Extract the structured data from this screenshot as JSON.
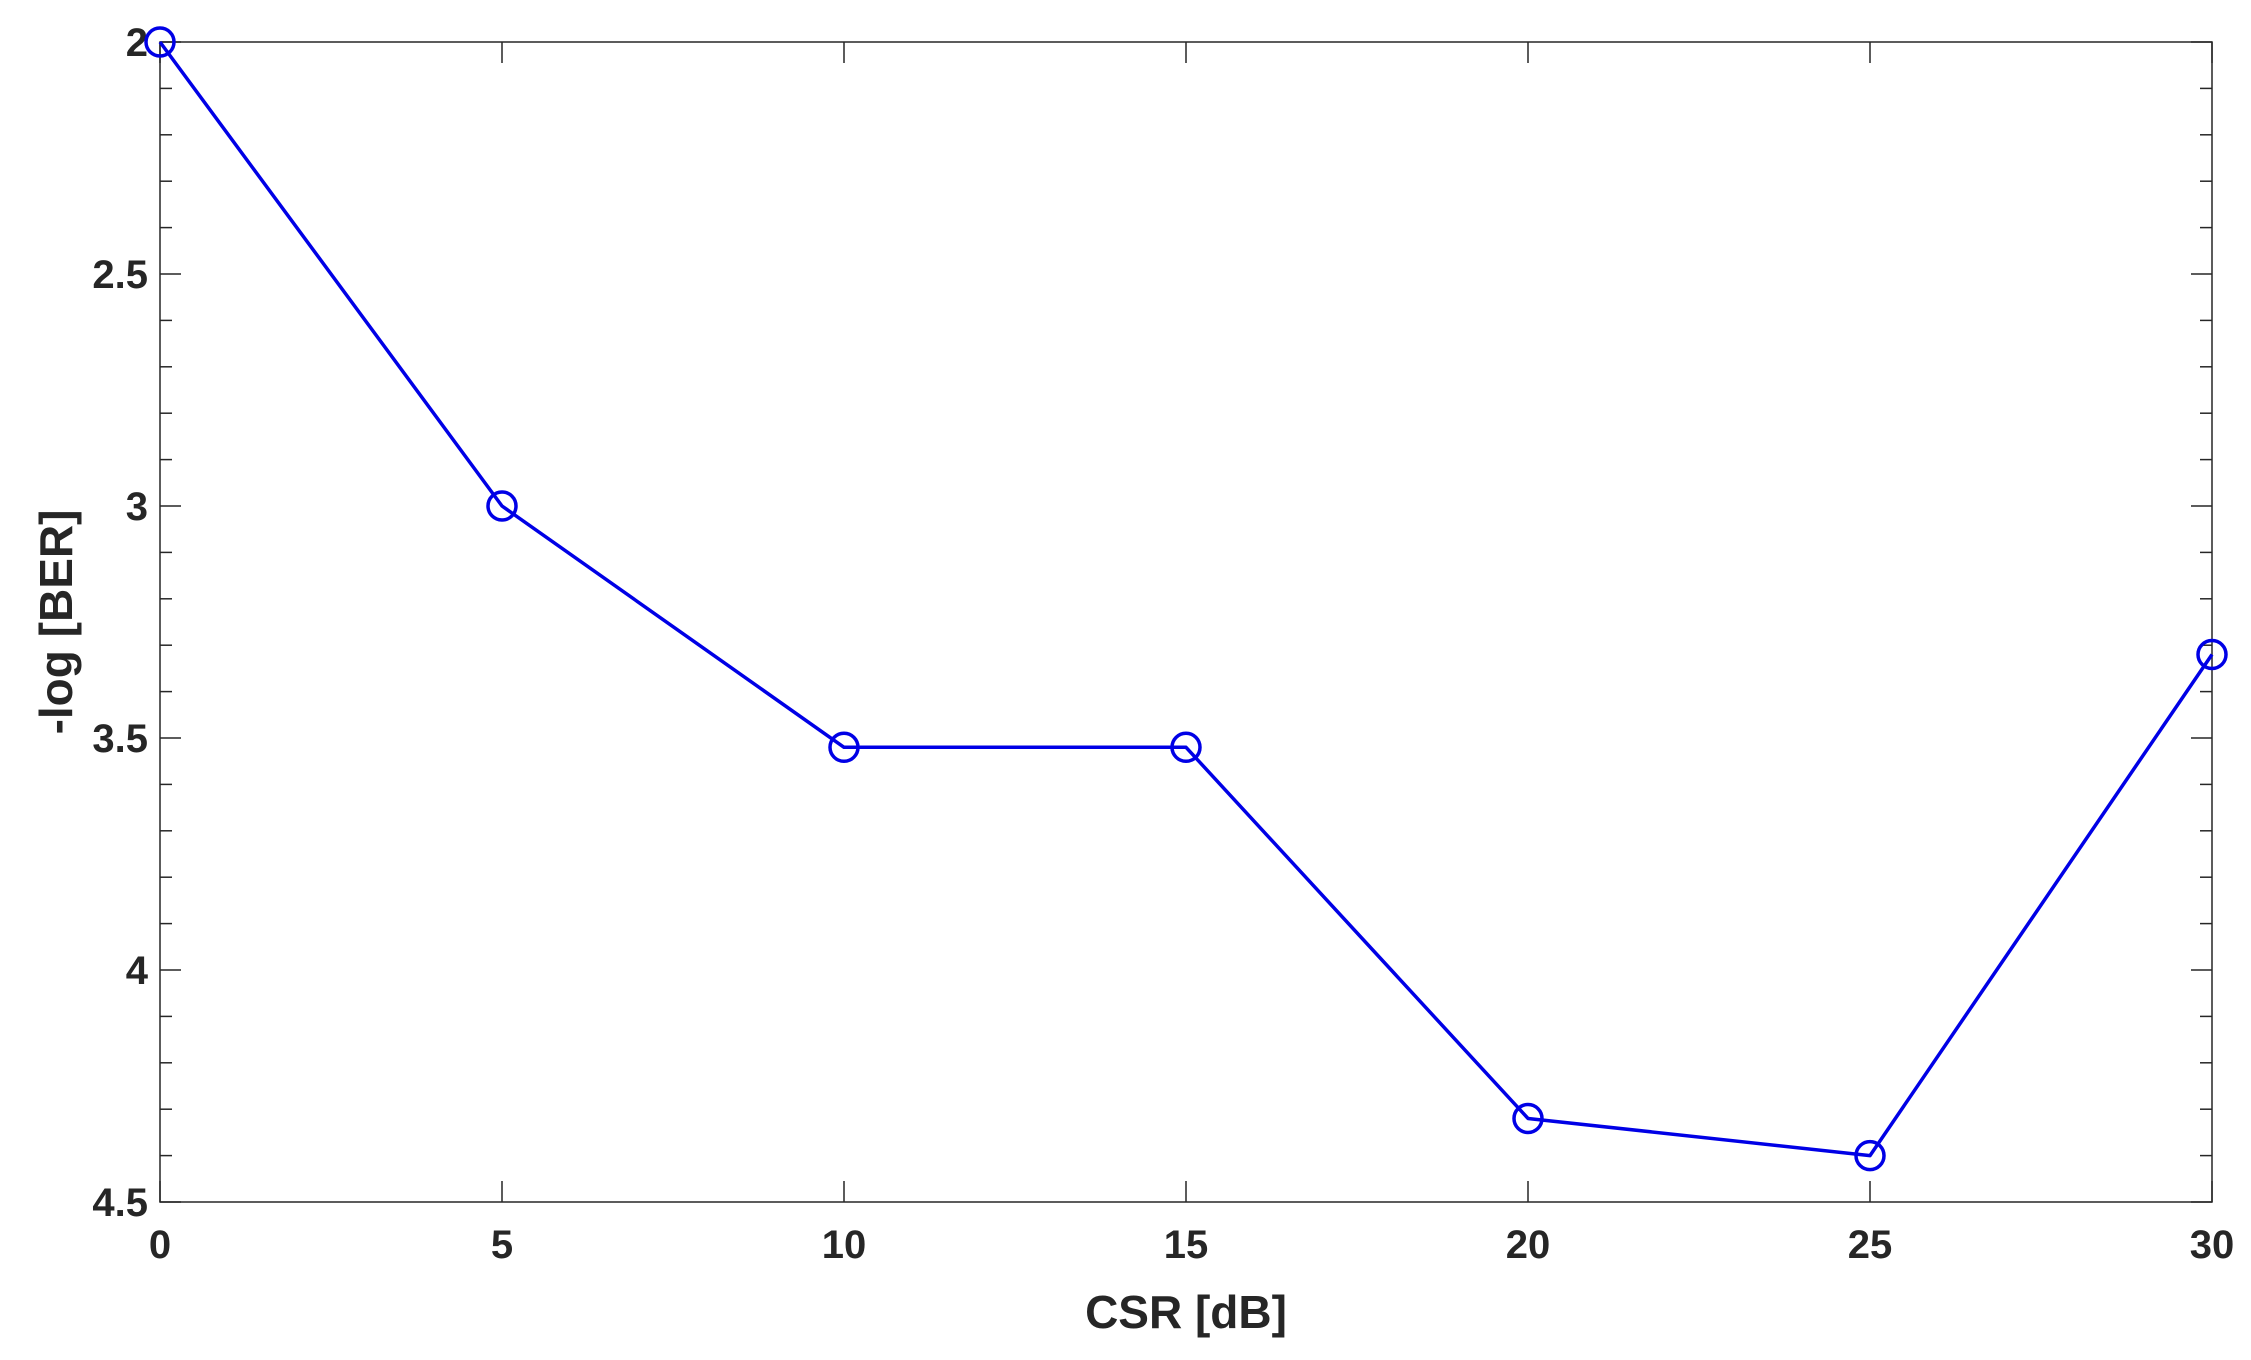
{
  "chart_data": {
    "type": "line",
    "title": "",
    "xlabel": "CSR [dB]",
    "ylabel": "-log [BER]",
    "x": [
      0,
      5,
      10,
      15,
      20,
      25,
      30
    ],
    "series": [
      {
        "values": [
          2.0,
          3.0,
          3.52,
          3.52,
          4.32,
          4.4,
          3.32
        ],
        "color": "#0000e6",
        "marker": "circle"
      }
    ],
    "xlim": [
      0,
      30
    ],
    "ylim": [
      2,
      4.5
    ],
    "y_axis_reversed": true,
    "x_ticks": [
      "0",
      "5",
      "10",
      "15",
      "20",
      "25",
      "30"
    ],
    "y_ticks": [
      "2",
      "2.5",
      "3",
      "3.5",
      "4",
      "4.5"
    ],
    "grid": false,
    "box": true
  }
}
